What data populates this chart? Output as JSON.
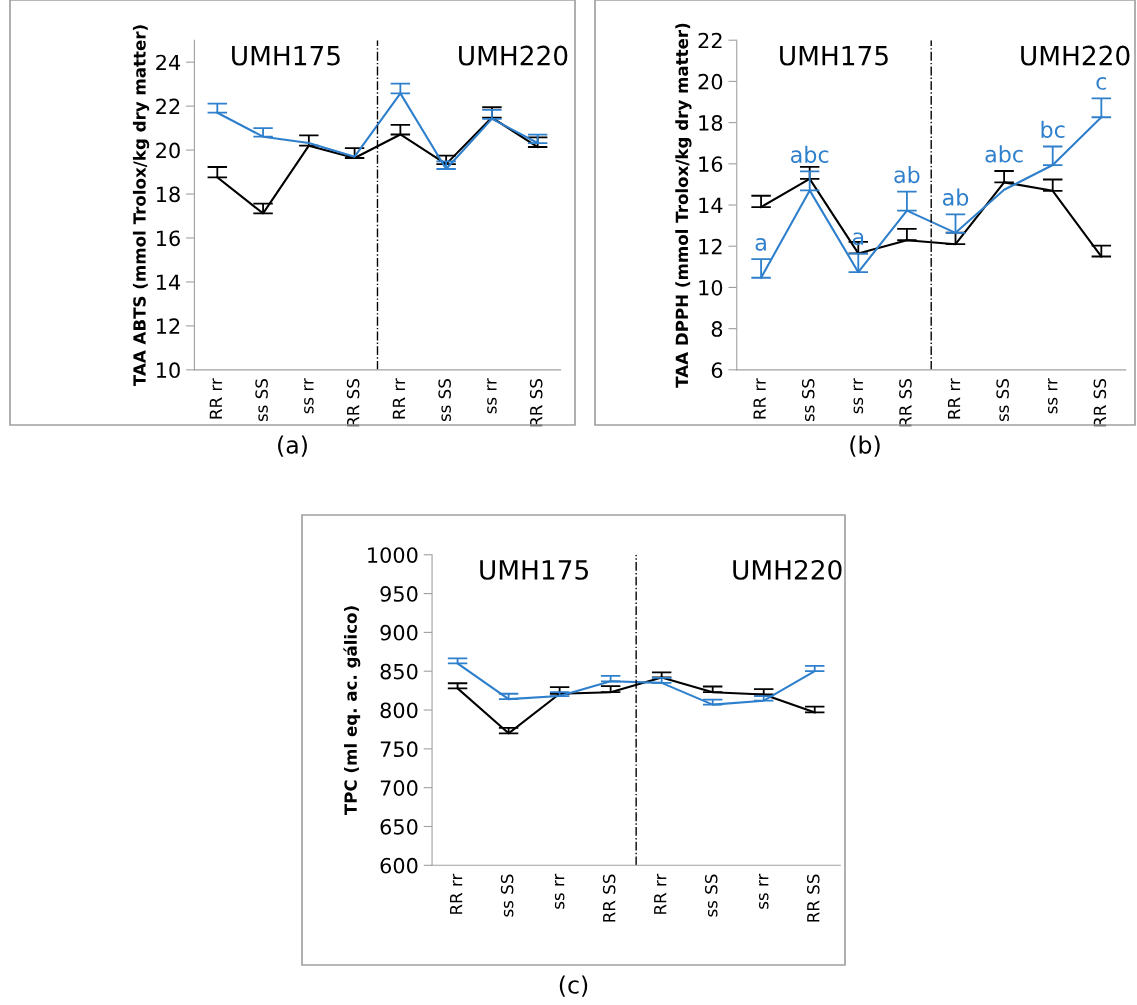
{
  "chart_data": [
    {
      "type": "line",
      "ylabel": "TAA ABTS (mmol Trolox/kg dry matter)",
      "categories": [
        "RR rr",
        "ss SS",
        "ss rr",
        "RR SS",
        "RR rr",
        "ss SS",
        "ss rr",
        "RR SS"
      ],
      "ylim": [
        10,
        25
      ],
      "yticks": [
        10,
        12,
        14,
        16,
        18,
        20,
        22,
        24
      ],
      "grid": false,
      "marker": "none",
      "annotations": [
        "UMH175",
        "UMH220",
        "(a)"
      ],
      "series": [
        {
          "color": "#000000",
          "values": [
            18.76,
            17.12,
            20.2,
            19.64,
            20.71,
            19.36,
            21.48,
            20.14
          ],
          "errors": [
            [
              18.76,
              19.23
            ],
            [
              17.12,
              17.56
            ],
            [
              20.2,
              20.67
            ],
            [
              19.64,
              20.09
            ],
            [
              20.71,
              21.15
            ],
            [
              19.36,
              19.75
            ],
            [
              21.48,
              21.95
            ],
            [
              20.14,
              20.58
            ]
          ]
        },
        {
          "color": "#2e7fcc",
          "values": [
            21.7,
            20.61,
            20.32,
            19.7,
            22.58,
            19.14,
            21.42,
            20.32
          ],
          "errors": [
            [
              21.7,
              22.11
            ],
            [
              20.61,
              21.0
            ],
            null,
            null,
            [
              22.58,
              23.02
            ],
            [
              19.14,
              19.49
            ],
            [
              21.42,
              21.83
            ],
            [
              20.32,
              20.7
            ]
          ]
        }
      ]
    },
    {
      "type": "line",
      "ylabel": "TAA DPPH (mmol Trolox/kg dry matter)",
      "categories": [
        "RR rr",
        "ss SS",
        "ss rr",
        "RR SS",
        "RR rr",
        "ss SS",
        "ss rr",
        "RR SS"
      ],
      "ylim": [
        6,
        22
      ],
      "yticks": [
        6,
        8,
        10,
        12,
        14,
        16,
        18,
        20,
        22
      ],
      "grid": false,
      "marker": "none",
      "annotations": [
        "UMH175",
        "UMH220",
        "(b)"
      ],
      "series": [
        {
          "color": "#000000",
          "values": [
            13.9,
            15.27,
            11.65,
            12.29,
            12.1,
            15.1,
            14.69,
            11.5
          ],
          "errors": [
            [
              13.9,
              14.45
            ],
            [
              15.27,
              15.85
            ],
            [
              11.65,
              12.21
            ],
            [
              12.29,
              12.84
            ],
            [
              12.1,
              12.66
            ],
            [
              15.1,
              15.65
            ],
            [
              14.69,
              15.24
            ],
            [
              11.5,
              12.03
            ]
          ]
        },
        {
          "color": "#2e7fcc",
          "values": [
            10.47,
            14.71,
            10.74,
            13.73,
            12.65,
            14.74,
            15.94,
            18.26
          ],
          "errors": [
            [
              10.47,
              11.37
            ],
            [
              14.71,
              15.63
            ],
            [
              10.74,
              11.64
            ],
            [
              13.73,
              14.65
            ],
            [
              12.65,
              13.55
            ],
            null,
            [
              15.94,
              16.84
            ],
            [
              18.26,
              19.18
            ]
          ],
          "value_labels": [
            "a",
            "abc",
            "a",
            "ab",
            "ab",
            "abc",
            "bc",
            "c"
          ]
        }
      ]
    },
    {
      "type": "line",
      "ylabel": "TPC (ml eq. ac. gálico)",
      "categories": [
        "RR rr",
        "ss SS",
        "ss rr",
        "RR SS",
        "RR rr",
        "ss SS",
        "ss rr",
        "RR SS"
      ],
      "ylim": [
        600,
        1000
      ],
      "yticks": [
        600,
        650,
        700,
        750,
        800,
        850,
        900,
        950,
        1000
      ],
      "grid": false,
      "marker": "none",
      "annotations": [
        "UMH175",
        "UMH220",
        "(c)"
      ],
      "series": [
        {
          "color": "#000000",
          "values": [
            828,
            770,
            821,
            823,
            842,
            823,
            820,
            797
          ],
          "errors": [
            [
              828,
              834.5
            ],
            [
              770,
              777
            ],
            [
              821,
              829.5
            ],
            [
              823,
              830.7
            ],
            [
              842,
              848.5
            ],
            [
              823,
              830.3
            ],
            [
              820,
              827
            ],
            [
              797,
              804.3
            ]
          ]
        },
        {
          "color": "#2e7fcc",
          "values": [
            860,
            814,
            818,
            837,
            835,
            807,
            812,
            850
          ],
          "errors": [
            [
              860,
              866.5
            ],
            [
              814,
              821
            ],
            [
              818,
              823
            ],
            [
              837,
              844
            ],
            [
              835,
              841.5
            ],
            [
              807,
              813.5
            ],
            [
              812,
              818
            ],
            [
              850,
              857
            ]
          ]
        }
      ]
    }
  ]
}
